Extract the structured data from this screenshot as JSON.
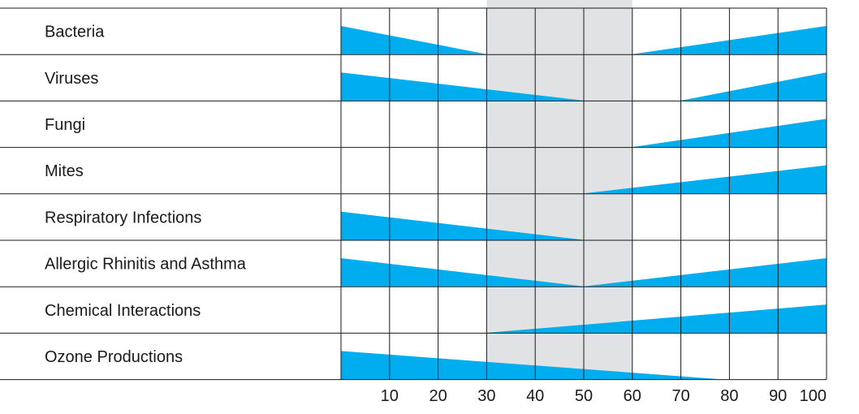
{
  "chart_data": {
    "type": "area",
    "title": "",
    "xlabel": "",
    "ylabel": "",
    "xlim": [
      0,
      100
    ],
    "x_ticks": [
      10,
      20,
      30,
      40,
      50,
      60,
      70,
      80,
      90,
      100
    ],
    "optimal_zone": [
      30,
      60
    ],
    "colors": {
      "wedge": "#00aeef",
      "optimal_zone": "#e1e2e4",
      "grid": "#1a1a1a"
    },
    "rows": [
      {
        "label": "Bacteria",
        "wedges": [
          [
            0,
            30,
            "left"
          ],
          [
            60,
            100,
            "right"
          ]
        ]
      },
      {
        "label": "Viruses",
        "wedges": [
          [
            0,
            50,
            "left"
          ],
          [
            70,
            100,
            "right"
          ]
        ]
      },
      {
        "label": "Fungi",
        "wedges": [
          [
            60,
            100,
            "right"
          ]
        ]
      },
      {
        "label": "Mites",
        "wedges": [
          [
            50,
            100,
            "right"
          ]
        ]
      },
      {
        "label": "Respiratory Infections",
        "wedges": [
          [
            0,
            50,
            "left"
          ]
        ]
      },
      {
        "label": "Allergic Rhinitis and Asthma",
        "wedges": [
          [
            0,
            50,
            "left"
          ],
          [
            50,
            100,
            "right"
          ]
        ]
      },
      {
        "label": "Chemical Interactions",
        "wedges": [
          [
            30,
            100,
            "right"
          ]
        ]
      },
      {
        "label": "Ozone Productions",
        "wedges": [
          [
            0,
            78,
            "left"
          ]
        ]
      }
    ]
  }
}
